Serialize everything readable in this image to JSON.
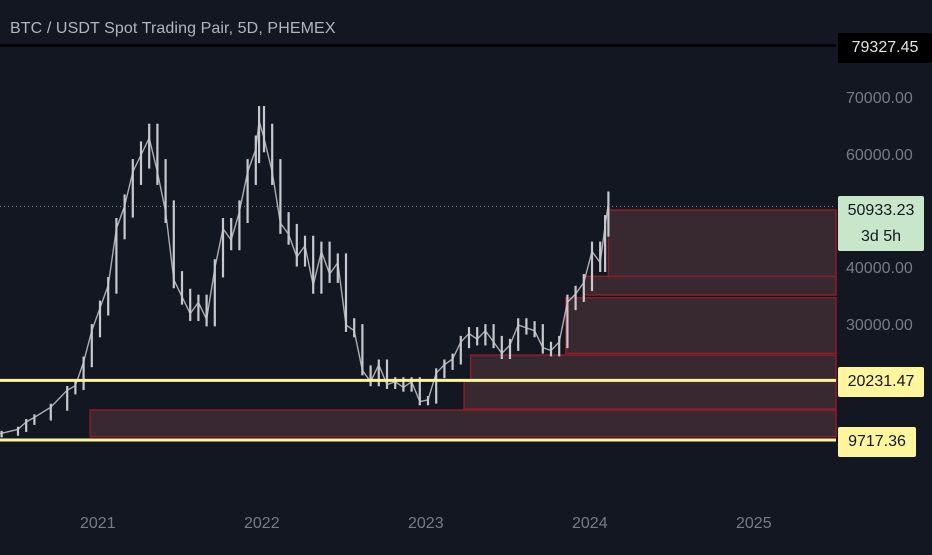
{
  "header": {
    "title": "BTC / USDT Spot Trading Pair, 5D, PHEMEX"
  },
  "price_tags": {
    "top_line": "79327.45",
    "current_price": "50933.23",
    "countdown": "3d 5h",
    "level_1": "20231.47",
    "level_2": "9717.36"
  },
  "colors": {
    "background": "#131722",
    "candles": "#c8c8cc",
    "zone_fill": "#3a2a33",
    "zone_border": "#8a1e2a",
    "support_line": "#fff59d",
    "axis_text": "#787b86"
  },
  "chart_data": {
    "type": "line",
    "title": "BTC / USDT Spot Trading Pair, 5D, PHEMEX",
    "xlabel": "",
    "ylabel": "",
    "x_ticks": [
      "2021",
      "2022",
      "2023",
      "2024",
      "2025"
    ],
    "y_ticks": [
      "70000.00",
      "60000.00",
      "40000.00",
      "30000.00"
    ],
    "ylim": [
      2000,
      82000
    ],
    "series": [
      {
        "values": [
          [
            2020.0,
            9300
          ],
          [
            2020.1,
            9400
          ],
          [
            2020.2,
            10000
          ],
          [
            2020.3,
            10600
          ],
          [
            2020.4,
            10900
          ],
          [
            2020.5,
            11600
          ],
          [
            2020.55,
            12900
          ],
          [
            2020.6,
            13700
          ],
          [
            2020.7,
            15500
          ],
          [
            2020.8,
            18500
          ],
          [
            2020.85,
            19300
          ],
          [
            2020.9,
            23500
          ],
          [
            2020.95,
            29000
          ],
          [
            2021.0,
            33000
          ],
          [
            2021.05,
            37000
          ],
          [
            2021.1,
            47000
          ],
          [
            2021.15,
            51000
          ],
          [
            2021.2,
            57000
          ],
          [
            2021.25,
            60000
          ],
          [
            2021.3,
            63000
          ],
          [
            2021.35,
            57000
          ],
          [
            2021.4,
            50000
          ],
          [
            2021.45,
            38000
          ],
          [
            2021.5,
            35000
          ],
          [
            2021.55,
            32000
          ],
          [
            2021.6,
            34000
          ],
          [
            2021.65,
            31000
          ],
          [
            2021.7,
            40000
          ],
          [
            2021.75,
            47000
          ],
          [
            2021.8,
            45000
          ],
          [
            2021.85,
            50000
          ],
          [
            2021.9,
            57000
          ],
          [
            2021.95,
            61000
          ],
          [
            2021.97,
            66000
          ],
          [
            2022.0,
            63000
          ],
          [
            2022.05,
            57000
          ],
          [
            2022.1,
            48000
          ],
          [
            2022.15,
            46000
          ],
          [
            2022.2,
            42000
          ],
          [
            2022.25,
            44000
          ],
          [
            2022.3,
            37000
          ],
          [
            2022.35,
            43000
          ],
          [
            2022.4,
            39000
          ],
          [
            2022.45,
            41000
          ],
          [
            2022.5,
            30000
          ],
          [
            2022.55,
            29000
          ],
          [
            2022.6,
            22000
          ],
          [
            2022.65,
            20000
          ],
          [
            2022.7,
            23000
          ],
          [
            2022.75,
            19500
          ],
          [
            2022.8,
            20000
          ],
          [
            2022.85,
            19000
          ],
          [
            2022.9,
            20000
          ],
          [
            2022.95,
            16500
          ],
          [
            2023.0,
            16800
          ],
          [
            2023.05,
            21500
          ],
          [
            2023.1,
            23000
          ],
          [
            2023.15,
            24000
          ],
          [
            2023.2,
            27000
          ],
          [
            2023.25,
            28500
          ],
          [
            2023.3,
            27500
          ],
          [
            2023.35,
            29000
          ],
          [
            2023.4,
            27000
          ],
          [
            2023.45,
            25000
          ],
          [
            2023.5,
            26500
          ],
          [
            2023.55,
            30000
          ],
          [
            2023.6,
            29500
          ],
          [
            2023.65,
            29000
          ],
          [
            2023.7,
            26000
          ],
          [
            2023.75,
            25500
          ],
          [
            2023.8,
            27000
          ],
          [
            2023.85,
            34000
          ],
          [
            2023.9,
            35500
          ],
          [
            2023.95,
            37500
          ],
          [
            2024.0,
            43000
          ],
          [
            2024.05,
            41000
          ],
          [
            2024.08,
            47500
          ],
          [
            2024.1,
            51500
          ]
        ]
      }
    ],
    "overlays": {
      "horizontal_lines": [
        79327.45,
        20231.47,
        9717.36
      ],
      "current_price_line": 50933.23,
      "zones": [
        {
          "x_start": 2024.1,
          "x_end": 2025.45,
          "y_low": 38000,
          "y_high": 50300
        },
        {
          "x_start": 2023.95,
          "x_end": 2025.45,
          "y_low": 35300,
          "y_high": 38600
        },
        {
          "x_start": 2023.84,
          "x_end": 2025.45,
          "y_low": 25000,
          "y_high": 34800
        },
        {
          "x_start": 2023.26,
          "x_end": 2025.45,
          "y_low": 19500,
          "y_high": 24700
        },
        {
          "x_start": 2023.22,
          "x_end": 2025.45,
          "y_low": 15200,
          "y_high": 20300
        },
        {
          "x_start": 2020.94,
          "x_end": 2025.45,
          "y_low": 10300,
          "y_high": 15000
        }
      ]
    }
  }
}
